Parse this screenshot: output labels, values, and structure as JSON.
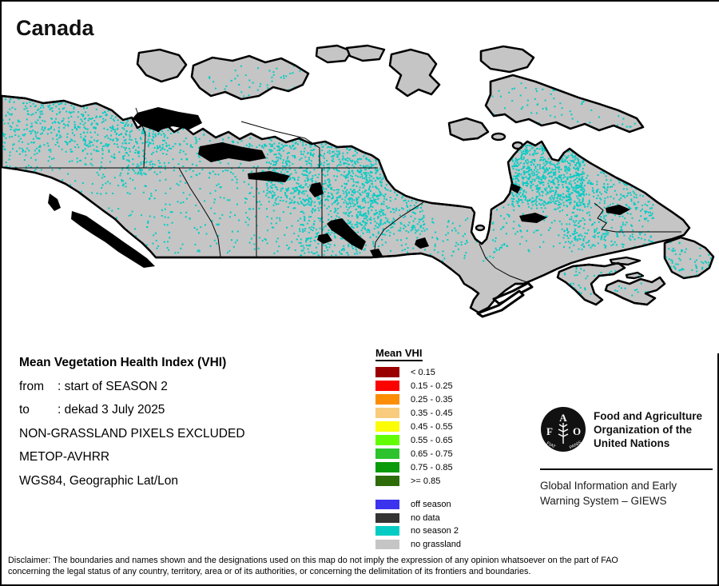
{
  "title": "Canada",
  "info": {
    "heading": "Mean Vegetation Health Index (VHI)",
    "rows": [
      {
        "label": "from",
        "value": ": start of SEASON 2"
      },
      {
        "label": "to",
        "value": ": dekad 3 July 2025"
      }
    ],
    "lines": [
      "NON-GRASSLAND PIXELS EXCLUDED",
      "METOP-AVHRR",
      "WGS84, Geographic Lat/Lon"
    ]
  },
  "legend": {
    "title": "Mean VHI",
    "classes": [
      {
        "label": "< 0.15",
        "color": "#9a0000"
      },
      {
        "label": "0.15 - 0.25",
        "color": "#fb0400"
      },
      {
        "label": "0.25 - 0.35",
        "color": "#fc8d04"
      },
      {
        "label": "0.35 - 0.45",
        "color": "#f8cc7c"
      },
      {
        "label": "0.45 - 0.55",
        "color": "#fcfc04"
      },
      {
        "label": "0.55 - 0.65",
        "color": "#64fc04"
      },
      {
        "label": "0.65 - 0.75",
        "color": "#2dc32d"
      },
      {
        "label": "0.75 - 0.85",
        "color": "#0a9b0a"
      },
      {
        "label": ">= 0.85",
        "color": "#2e6c0a"
      }
    ],
    "extra": [
      {
        "label": "off season",
        "color": "#3c33ee"
      },
      {
        "label": "no data",
        "color": "#343434"
      },
      {
        "label": "no season 2",
        "color": "#04ccc4"
      },
      {
        "label": "no grassland",
        "color": "#c5c5c5"
      }
    ]
  },
  "org": {
    "fao_letters": [
      "F",
      "A",
      "O"
    ],
    "fao_motto_left": "FIAT",
    "fao_motto_right": "PANIS",
    "fao_name_lines": [
      "Food and Agriculture",
      "Organization of the",
      "United Nations"
    ],
    "giews_lines": [
      "Global Information and Early",
      "Warning System – GIEWS"
    ]
  },
  "map": {
    "land_color": "#c5c5c5",
    "coast_color": "#000000",
    "ocean_color": "#ffffff",
    "no_season2_color": "#04ccc4"
  },
  "disclaimer_lines": [
    "Disclaimer: The boundaries and names shown and the designations used on this map do not imply the expression of any opinion whatsoever on the part of FAO",
    "concerning the legal status of any country, territory, area or of its authorities, or concerning the delimitation of its frontiers and boundaries."
  ]
}
